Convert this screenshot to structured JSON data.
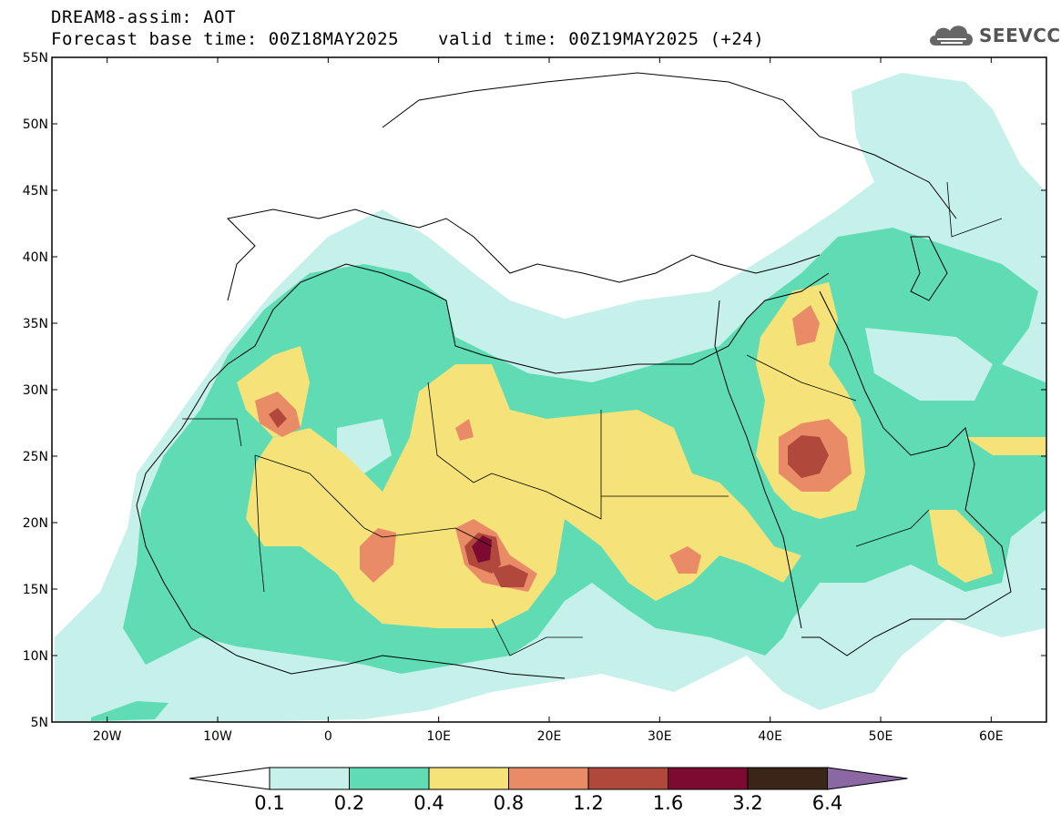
{
  "header": {
    "title": "DREAM8-assim: AOT",
    "base_time": "Forecast base time: 00Z18MAY2025",
    "valid_time": "valid time: 00Z19MAY2025 (+24)"
  },
  "logo": {
    "text": "SEEVCCC",
    "icon": "cloud-icon"
  },
  "map": {
    "lat_labels": [
      "55N",
      "50N",
      "45N",
      "40N",
      "35N",
      "30N",
      "25N",
      "20N",
      "15N",
      "10N",
      "5N"
    ],
    "lon_labels": [
      "20W",
      "10W",
      "0",
      "10E",
      "20E",
      "30E",
      "40E",
      "50E",
      "60E"
    ],
    "lat_values": [
      55,
      50,
      45,
      40,
      35,
      30,
      25,
      20,
      15,
      10,
      5
    ],
    "lon_values": [
      -20,
      -10,
      0,
      10,
      20,
      30,
      40,
      50,
      60
    ],
    "extent": {
      "lon_min": -25,
      "lon_max": 65,
      "lat_min": 5,
      "lat_max": 55
    }
  },
  "colorbar": {
    "levels": [
      "0.1",
      "0.2",
      "0.4",
      "0.8",
      "1.2",
      "1.6",
      "3.2",
      "6.4"
    ],
    "colors": [
      "#c6f0ea",
      "#5fdcb4",
      "#f5e37a",
      "#e98b66",
      "#b0483c",
      "#7d0a30",
      "#3b2418",
      "#8b67a3"
    ]
  },
  "contours": [
    {
      "level": "0.1",
      "color": "#c6f0ea"
    },
    {
      "level": "0.2",
      "color": "#5fdcb4"
    },
    {
      "level": "0.4",
      "color": "#f5e37a"
    },
    {
      "level": "0.8",
      "color": "#e98b66"
    },
    {
      "level": "1.2",
      "color": "#b0483c"
    },
    {
      "level": "1.6",
      "color": "#7d0a30"
    }
  ]
}
